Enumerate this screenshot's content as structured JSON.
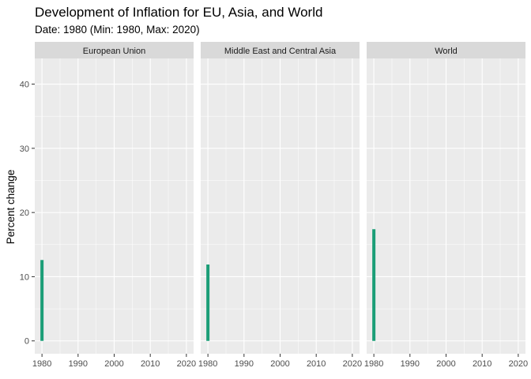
{
  "chart_data": {
    "type": "bar",
    "title": "Development of Inflation for EU, Asia, and World",
    "subtitle": "Date: 1980 (Min: 1980, Max: 2020)",
    "xlabel": "",
    "ylabel": "Percent change",
    "xlim": [
      1978,
      2022
    ],
    "ylim": [
      -2,
      44
    ],
    "x_ticks": [
      1980,
      1990,
      2000,
      2010,
      2020
    ],
    "y_ticks": [
      0,
      10,
      20,
      30,
      40
    ],
    "grid": true,
    "facets": [
      {
        "name": "European Union",
        "x": [
          1980
        ],
        "values": [
          12.6
        ]
      },
      {
        "name": "Middle East and Central Asia",
        "x": [
          1980
        ],
        "values": [
          11.9
        ]
      },
      {
        "name": "World",
        "x": [
          1980
        ],
        "values": [
          17.4
        ]
      }
    ],
    "colors": {
      "bar": "#1b9e77",
      "panel_bg": "#ebebeb",
      "strip_bg": "#d9d9d9",
      "grid_major": "#ffffff"
    }
  }
}
